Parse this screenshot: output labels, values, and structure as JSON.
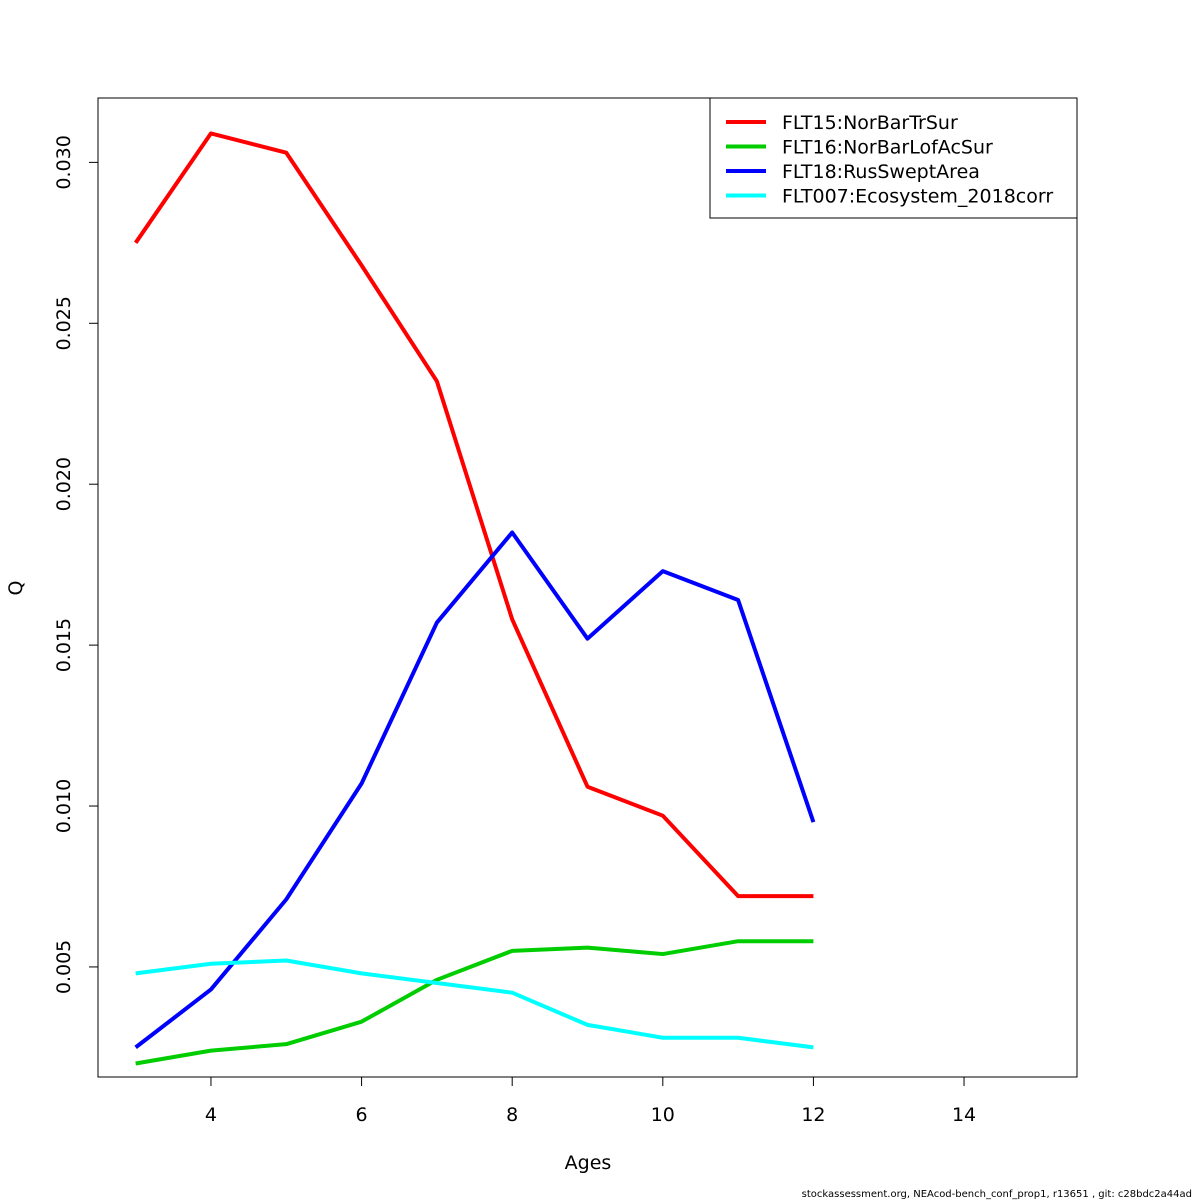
{
  "chart_data": {
    "type": "line",
    "title": "",
    "xlabel": "Ages",
    "ylabel": "Q",
    "xlim": [
      2.5,
      15.5
    ],
    "ylim": [
      0.00158,
      0.032
    ],
    "xticks": [
      4,
      6,
      8,
      10,
      12,
      14
    ],
    "xtick_labels": [
      "4",
      "6",
      "8",
      "10",
      "12",
      "14"
    ],
    "yticks": [
      0.005,
      0.01,
      0.015,
      0.02,
      0.025,
      0.03
    ],
    "ytick_labels": [
      "0.005",
      "0.010",
      "0.015",
      "0.020",
      "0.025",
      "0.030"
    ],
    "grid": false,
    "legend_position": "top-right",
    "x": [
      3,
      4,
      5,
      6,
      7,
      8,
      9,
      10,
      11,
      12
    ],
    "series": [
      {
        "name": "FLT15:NorBarTrSur",
        "color": "#ff0000",
        "values": [
          0.0275,
          0.0309,
          0.0303,
          0.0268,
          0.0232,
          0.0158,
          0.0106,
          0.0097,
          0.0072,
          0.0072
        ]
      },
      {
        "name": "FLT16:NorBarLofAcSur",
        "color": "#00cd00",
        "values": [
          0.002,
          0.0024,
          0.0026,
          0.0033,
          0.0046,
          0.0055,
          0.0056,
          0.0054,
          0.0058,
          0.0058
        ]
      },
      {
        "name": "FLT18:RusSweptArea",
        "color": "#0000ff",
        "values": [
          0.0025,
          0.0043,
          0.0071,
          0.0107,
          0.0157,
          0.0185,
          0.0152,
          0.0173,
          0.0164,
          0.0095
        ]
      },
      {
        "name": "FLT007:Ecosystem_2018corr",
        "color": "#00ffff",
        "values": [
          0.0048,
          0.0051,
          0.0052,
          0.0048,
          0.0045,
          0.0042,
          0.0032,
          0.0028,
          0.0028,
          0.0025
        ]
      }
    ]
  },
  "footer": "stockassessment.org, NEAcod-bench_conf_prop1, r13651 , git: c28bdc2a44ad"
}
